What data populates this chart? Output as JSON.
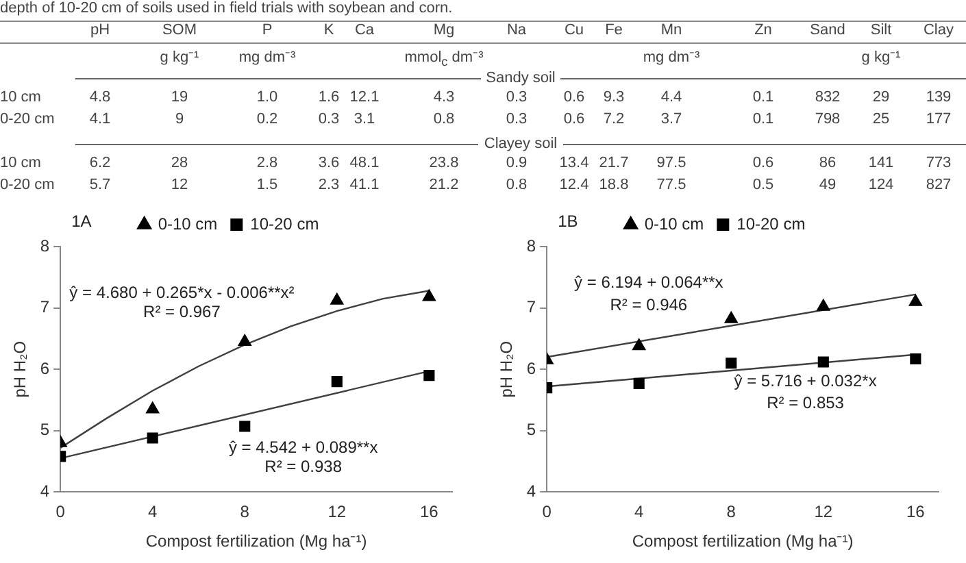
{
  "chart_data": [
    {
      "type": "other",
      "title": "depth of 10-20 cm of soils used in field trials with soybean and corn.",
      "categories": [
        "pH",
        "SOM",
        "P",
        "K",
        "Ca",
        "Mg",
        "Na",
        "Cu",
        "Fe",
        "Mn",
        "Zn",
        "Sand",
        "Silt",
        "Clay"
      ],
      "y_categories": [
        null,
        null,
        "10 cm",
        "0-20 cm",
        null,
        "10 cm",
        "0-20 cm"
      ],
      "cell_labels": [
        [
          null,
          "g kg⁻¹",
          "mg dm⁻³",
          null,
          null,
          "mmol$_{c}$ dm⁻³",
          null,
          null,
          null,
          "mg dm⁻³",
          null,
          null,
          "g kg⁻¹",
          null
        ],
        "Sandy soil",
        [
          "4.8",
          "19",
          "1.0",
          "1.6",
          "12.1",
          "4.3",
          "0.3",
          "0.6",
          "9.3",
          "4.4",
          "0.1",
          "832",
          "29",
          "139"
        ],
        [
          "4.1",
          "9",
          "0.2",
          "0.3",
          "3.1",
          "0.8",
          "0.3",
          "0.6",
          "7.2",
          "3.7",
          "0.1",
          "798",
          "25",
          "177"
        ],
        "Clayey soil",
        [
          "6.2",
          "28",
          "2.8",
          "3.6",
          "48.1",
          "23.8",
          "0.9",
          "13.4",
          "21.7",
          "97.5",
          "0.6",
          "86",
          "141",
          "773"
        ],
        [
          "5.7",
          "12",
          "1.5",
          "2.3",
          "41.1",
          "21.2",
          "0.8",
          "12.4",
          "18.8",
          "77.5",
          "0.5",
          "49",
          "124",
          "827"
        ]
      ]
    },
    {
      "type": "scatter",
      "title": "1A",
      "xlabel": "Compost fertilization (Mg ha⁻¹)",
      "ylabel": "pH H₂O",
      "x": [
        0,
        4,
        8,
        12,
        16
      ],
      "xlim": [
        0,
        17
      ],
      "xticks": [
        0,
        4,
        8,
        12,
        16
      ],
      "ylim": [
        4,
        8
      ],
      "yticks": [
        4,
        5,
        6,
        7,
        8
      ],
      "grid": false,
      "legend": "top",
      "series": [
        {
          "name": "0-10 cm",
          "color": "#000000",
          "marker": "triangle",
          "values": [
            4.8,
            5.35,
            6.45,
            7.12,
            7.18
          ]
        },
        {
          "name": "10-20 cm",
          "color": "#000000",
          "marker": "square",
          "values": [
            4.58,
            4.88,
            5.07,
            5.8,
            5.9
          ]
        },
        {
          "type": "line",
          "color": "#404040",
          "marker": "none",
          "x": [
            0,
            2,
            4,
            6,
            8,
            10,
            12,
            14,
            16
          ],
          "values": [
            4.72,
            5.2,
            5.65,
            6.05,
            6.4,
            6.7,
            6.95,
            7.15,
            7.28
          ]
        },
        {
          "type": "line",
          "color": "#404040",
          "marker": "none",
          "x": [
            0,
            16
          ],
          "values": [
            4.55,
            5.97
          ]
        }
      ],
      "annotations": [
        "ŷ = 4.680 + 0.265*x - 0.006**x²",
        "R² = 0.967",
        "ŷ = 4.542 + 0.089**x",
        "R² = 0.938"
      ]
    },
    {
      "type": "scatter",
      "title": "1B",
      "xlabel": "Compost fertilization (Mg ha⁻¹)",
      "ylabel": "pH H₂O",
      "x": [
        0,
        4,
        8,
        12,
        16
      ],
      "xlim": [
        0,
        17
      ],
      "xticks": [
        0,
        4,
        8,
        12,
        16
      ],
      "ylim": [
        4,
        8
      ],
      "yticks": [
        4,
        5,
        6,
        7,
        8
      ],
      "grid": false,
      "legend": "top",
      "series": [
        {
          "name": "0-10 cm",
          "color": "#000000",
          "marker": "triangle",
          "values": [
            6.15,
            6.38,
            6.82,
            7.02,
            7.1
          ]
        },
        {
          "name": "10-20 cm",
          "color": "#000000",
          "marker": "square",
          "values": [
            5.7,
            5.77,
            6.1,
            6.12,
            6.17
          ]
        },
        {
          "type": "line",
          "color": "#404040",
          "marker": "none",
          "x": [
            0,
            16
          ],
          "values": [
            6.2,
            7.22
          ]
        },
        {
          "type": "line",
          "color": "#404040",
          "marker": "none",
          "x": [
            0,
            16
          ],
          "values": [
            5.72,
            6.24
          ]
        }
      ],
      "annotations": [
        "ŷ = 6.194 + 0.064**x",
        "R² = 0.946",
        "ŷ = 5.716 + 0.032*x",
        "R² = 0.853"
      ]
    }
  ]
}
